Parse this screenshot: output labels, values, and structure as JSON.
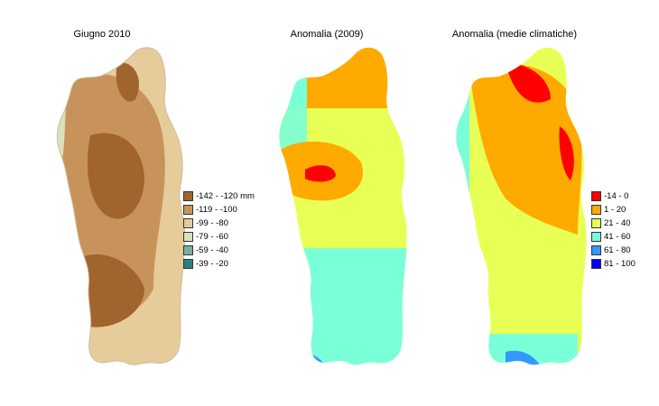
{
  "panels": [
    {
      "title": "Giugno 2010"
    },
    {
      "title": "Anomalia (2009)"
    },
    {
      "title": "Anomalia (medie climatiche)"
    }
  ],
  "legend_rain": [
    {
      "label": "-142 - -120 mm",
      "color": "#a0642d"
    },
    {
      "label": "-119 - -100",
      "color": "#c8935a"
    },
    {
      "label": "-99 - -80",
      "color": "#e6cc9a"
    },
    {
      "label": "-79 - -60",
      "color": "#d6e2bb"
    },
    {
      "label": "-59 - -40",
      "color": "#7aaf9f"
    },
    {
      "label": "-39 - -20",
      "color": "#2e7f86"
    }
  ],
  "legend_anomaly": [
    {
      "label": "-14 - 0",
      "color": "#ff0000"
    },
    {
      "label": "1 - 20",
      "color": "#ffaa00"
    },
    {
      "label": "21 - 40",
      "color": "#e8ff55"
    },
    {
      "label": "41 - 60",
      "color": "#7affd9"
    },
    {
      "label": "61 - 80",
      "color": "#3399ff"
    },
    {
      "label": "81 - 100",
      "color": "#0000ff"
    }
  ]
}
